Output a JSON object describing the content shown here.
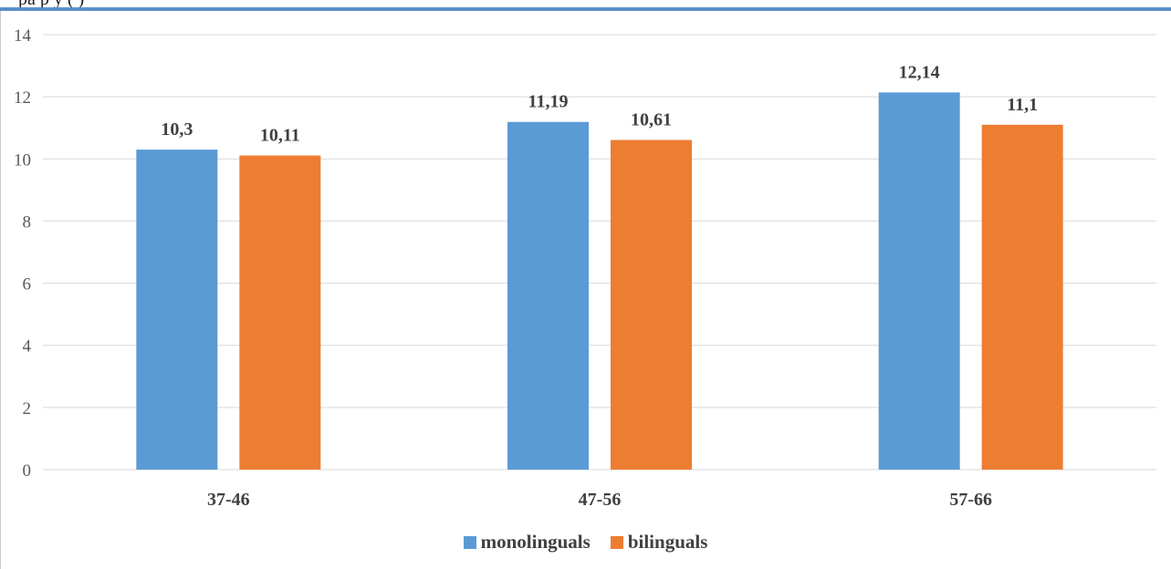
{
  "header_fragment": "pa                                   p   y                  (     )",
  "chart_data": {
    "type": "bar",
    "categories": [
      "37-46",
      "47-56",
      "57-66"
    ],
    "series": [
      {
        "name": "monolinguals",
        "values": [
          10.3,
          11.19,
          12.14
        ],
        "labels": [
          "10,3",
          "11,19",
          "12,14"
        ],
        "color": "#5b9bd5"
      },
      {
        "name": "bilinguals",
        "values": [
          10.11,
          10.61,
          11.1
        ],
        "labels": [
          "10,11",
          "10,61",
          "11,1"
        ],
        "color": "#ed7d31"
      }
    ],
    "ylim": [
      0,
      14
    ],
    "yticks": [
      "0",
      "2",
      "4",
      "6",
      "8",
      "10",
      "12",
      "14"
    ],
    "grid": true,
    "legend_position": "bottom"
  }
}
